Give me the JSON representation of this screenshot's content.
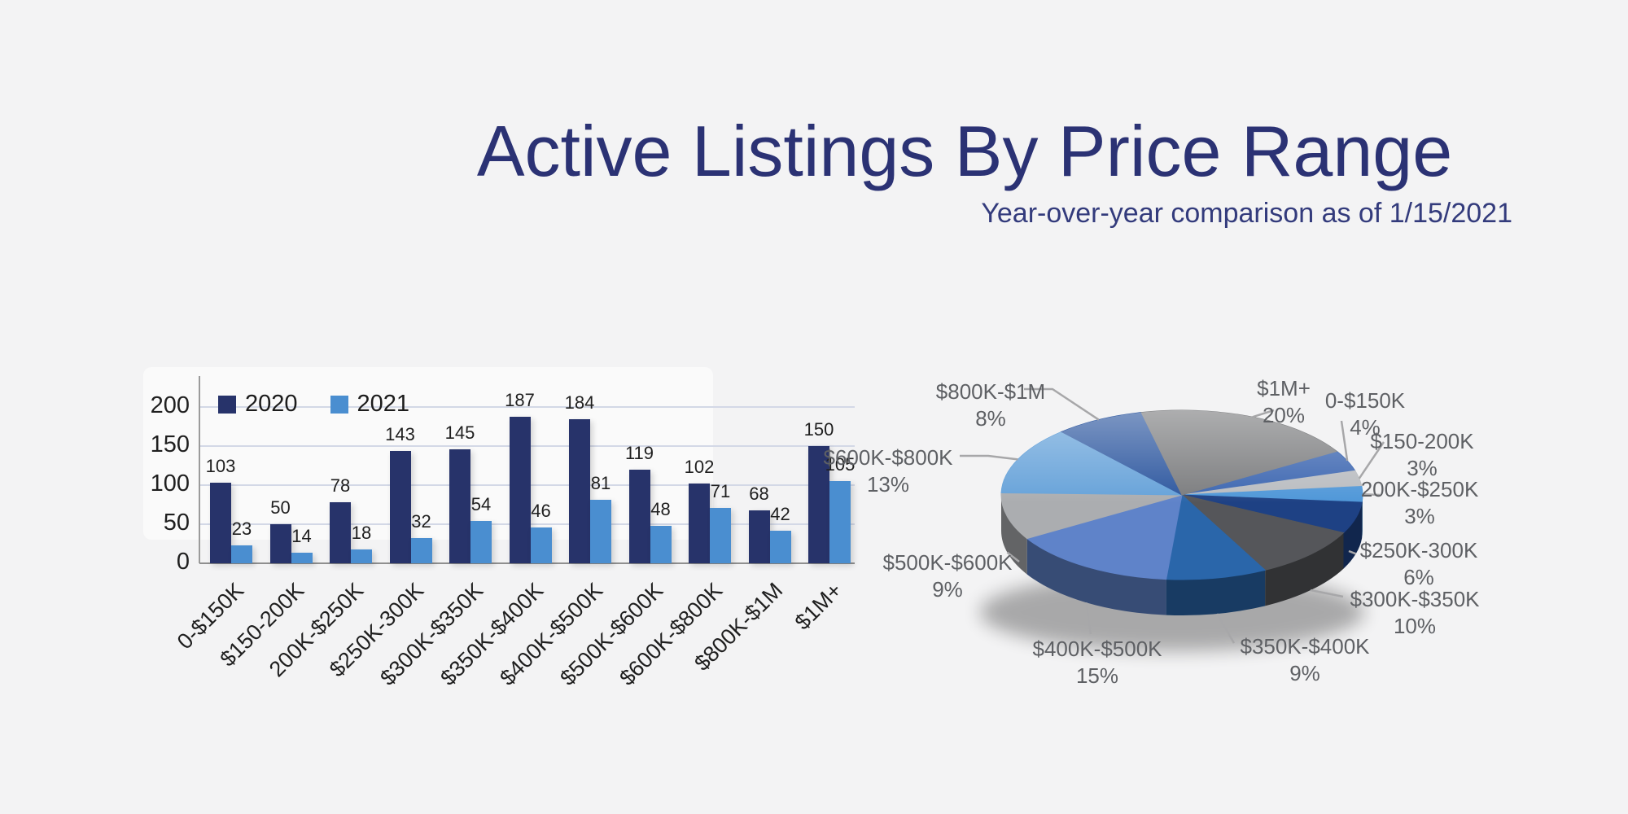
{
  "page": {
    "title": "Active Listings By Price Range",
    "subtitle": "Year-over-year comparison as of 1/15/2021",
    "title_color": "#2b3274",
    "background_color": "#f3f3f4"
  },
  "chart_data": [
    {
      "type": "bar",
      "name": "active-listings-grouped-bars",
      "categories": [
        "0-$150K",
        "$150-200K",
        "200K-$250K",
        "$250K-300K",
        "$300K-$350K",
        "$350K-$400K",
        "$400K-$500K",
        "$500K-$600K",
        "$600K-$800K",
        "$800K-$1M",
        "$1M+"
      ],
      "series": [
        {
          "name": "2020",
          "color": "#27336a",
          "values": [
            103,
            50,
            78,
            143,
            145,
            187,
            184,
            119,
            102,
            68,
            150
          ]
        },
        {
          "name": "2021",
          "color": "#4a8ed0",
          "values": [
            23,
            14,
            18,
            32,
            54,
            46,
            81,
            48,
            71,
            42,
            105
          ]
        }
      ],
      "yticks": [
        0,
        50,
        100,
        150,
        200
      ],
      "ylim": [
        0,
        200
      ],
      "grid": true,
      "value_labels": true,
      "legend_position": "top-left",
      "xlabel_rotation": -45,
      "gridline_color": "#d3d8e6",
      "axis_color": "#9b9b9b"
    },
    {
      "type": "pie",
      "style": "3d",
      "name": "active-listings-share-pie",
      "start_angle_deg": 59,
      "label_format": "category + percent",
      "slices": [
        {
          "label": "0-$150K",
          "pct": 4,
          "color": "#3b65b0"
        },
        {
          "label": "$150-200K",
          "pct": 3,
          "color": "#b9bcc0"
        },
        {
          "label": "200K-$250K",
          "pct": 3,
          "color": "#4f97d8"
        },
        {
          "label": "$250K-300K",
          "pct": 6,
          "color": "#1e4184"
        },
        {
          "label": "$300K-$350K",
          "pct": 10,
          "color": "#55565a"
        },
        {
          "label": "$350K-$400K",
          "pct": 9,
          "color": "#2a66aa"
        },
        {
          "label": "$400K-$500K",
          "pct": 15,
          "color": "#5f83c9"
        },
        {
          "label": "$500K-$600K",
          "pct": 9,
          "color": "#abadb0"
        },
        {
          "label": "$600K-$800K",
          "pct": 13,
          "color": "#66a2d9"
        },
        {
          "label": "$800K-$1M",
          "pct": 8,
          "color": "#2d579f"
        },
        {
          "label": "$1M+",
          "pct": 20,
          "color": "#7b7c7e"
        }
      ]
    }
  ]
}
